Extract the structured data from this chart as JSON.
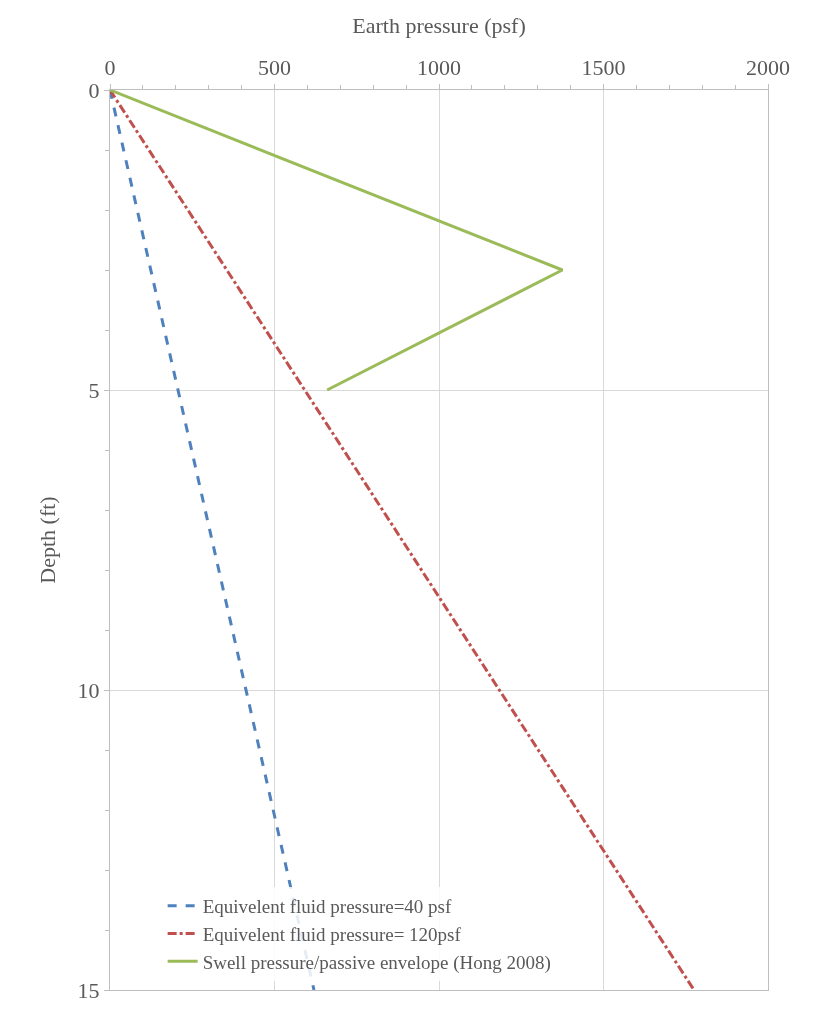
{
  "chart_data": {
    "type": "line",
    "xlabel": "Earth pressure (psf)",
    "ylabel": "Depth (ft)",
    "xlim": [
      0,
      2000
    ],
    "xticks": [
      0,
      500,
      1000,
      1500,
      2000
    ],
    "ylim": [
      15,
      0
    ],
    "yticks": [
      0,
      5,
      10,
      15
    ],
    "grid": true,
    "legend": "bottom",
    "marker": "none",
    "series": [
      {
        "name": "Equivelent fluid pressure=40 psf",
        "color": "#4f81bd",
        "line_style": "dashed",
        "x": [
          0,
          620
        ],
        "values": [
          0,
          15
        ]
      },
      {
        "name": "Equivelent fluid pressure= 120psf",
        "color": "#c0504d",
        "line_style": "dashdot",
        "x": [
          0,
          1775
        ],
        "values": [
          0,
          15
        ]
      },
      {
        "name": "Swell pressure/passive envelope (Hong 2008)",
        "color": "#9bbb59",
        "line_style": "solid",
        "x": [
          0,
          1375,
          660
        ],
        "values": [
          0,
          3,
          5
        ]
      }
    ]
  }
}
